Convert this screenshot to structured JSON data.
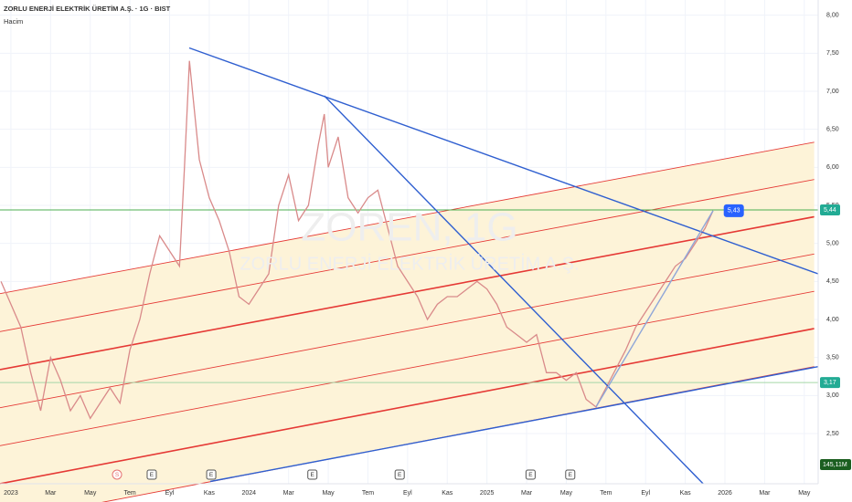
{
  "chart_data": {
    "type": "line",
    "title": "ZORLU ENERJİ ELEKTRİK ÜRETİM A.Ş. · 1G · BIST",
    "subtitle": "Hacim",
    "watermark": [
      "ZOREN, 1G",
      "ZORLU ENERJİ ELEKTRİK ÜRETİM A.Ş."
    ],
    "color": "#d98a8a",
    "x": [
      -0.5,
      0.5,
      1,
      1.5,
      2,
      2.5,
      3,
      3.5,
      4,
      4.5,
      5,
      5.5,
      6,
      6.5,
      7,
      7.5,
      8,
      8.5,
      8.75,
      9,
      9.5,
      10,
      10.5,
      11,
      11.5,
      12,
      12.5,
      13,
      13.5,
      14,
      14.5,
      15,
      15.5,
      15.8,
      16,
      16.5,
      17,
      17.5,
      18,
      18.5,
      19,
      19.5,
      20,
      20.5,
      21,
      21.5,
      22,
      22.5,
      23,
      23.5,
      24,
      24.5,
      25,
      25.5,
      26,
      26.5,
      27,
      27.5,
      28,
      28.5,
      29,
      29.5,
      30,
      30.5,
      31,
      31.5,
      32,
      32.5,
      33,
      33.5,
      34,
      34.5,
      35,
      35.4
    ],
    "values": [
      4.5,
      3.9,
      3.3,
      2.8,
      3.5,
      3.2,
      2.8,
      3.0,
      2.7,
      2.9,
      3.1,
      2.9,
      3.6,
      4.0,
      4.6,
      5.1,
      4.9,
      4.7,
      6.0,
      7.4,
      6.1,
      5.6,
      5.3,
      4.9,
      4.3,
      4.2,
      4.4,
      4.6,
      5.5,
      5.9,
      5.3,
      5.5,
      6.3,
      6.7,
      6.0,
      6.4,
      5.6,
      5.4,
      5.6,
      5.7,
      5.2,
      4.7,
      4.5,
      4.3,
      4.0,
      4.2,
      4.3,
      4.3,
      4.4,
      4.5,
      4.4,
      4.2,
      3.9,
      3.8,
      3.7,
      3.8,
      3.3,
      3.3,
      3.2,
      3.3,
      2.95,
      2.85,
      3.1,
      3.35,
      3.6,
      3.9,
      4.1,
      4.3,
      4.5,
      4.7,
      4.8,
      5.0,
      5.2,
      5.43
    ],
    "xlim": [
      -0.55,
      40.7
    ],
    "ylim": [
      1.84,
      8.2
    ],
    "xticks": [
      {
        "value": 0,
        "label": "2023"
      },
      {
        "value": 2,
        "label": "Mar"
      },
      {
        "value": 4,
        "label": "May"
      },
      {
        "value": 6,
        "label": "Tem"
      },
      {
        "value": 8,
        "label": "Eyl"
      },
      {
        "value": 10,
        "label": "Kas"
      },
      {
        "value": 12,
        "label": "2024"
      },
      {
        "value": 14,
        "label": "Mar"
      },
      {
        "value": 16,
        "label": "May"
      },
      {
        "value": 18,
        "label": "Tem"
      },
      {
        "value": 20,
        "label": "Eyl"
      },
      {
        "value": 22,
        "label": "Kas"
      },
      {
        "value": 24,
        "label": "2025"
      },
      {
        "value": 26,
        "label": "Mar"
      },
      {
        "value": 28,
        "label": "May"
      },
      {
        "value": 30,
        "label": "Tem"
      },
      {
        "value": 32,
        "label": "Eyl"
      },
      {
        "value": 34,
        "label": "Kas"
      },
      {
        "value": 36,
        "label": "2026"
      },
      {
        "value": 38,
        "label": "Mar"
      },
      {
        "value": 40,
        "label": "May"
      }
    ],
    "yticks": [
      {
        "value": 2.5,
        "label": "2,50"
      },
      {
        "value": 3,
        "label": "3,00"
      },
      {
        "value": 3.5,
        "label": "3,50"
      },
      {
        "value": 4,
        "label": "4,00"
      },
      {
        "value": 4.5,
        "label": "4,50"
      },
      {
        "value": 5,
        "label": "5,00"
      },
      {
        "value": 5.5,
        "label": "5,50"
      },
      {
        "value": 6,
        "label": "6,00"
      },
      {
        "value": 6.5,
        "label": "6,50"
      },
      {
        "value": 7,
        "label": "7,00"
      },
      {
        "value": 7.5,
        "label": "7,50"
      },
      {
        "value": 8,
        "label": "8,00"
      }
    ],
    "grid": true,
    "trendlines": [
      {
        "color": "#2f5fd0",
        "points": [
          [
            8.99,
            7.57
          ],
          [
            40.7,
            4.6
          ]
        ]
      },
      {
        "color": "#2f5fd0",
        "points": [
          [
            15.8,
            6.94
          ],
          [
            34.9,
            1.84
          ]
        ]
      },
      {
        "color": "#2f5fd0",
        "points": [
          [
            10.05,
            1.87
          ],
          [
            40.7,
            3.38
          ]
        ]
      },
      {
        "color": "#8fa6d8",
        "points": [
          [
            29.5,
            2.85
          ],
          [
            35.4,
            5.43
          ]
        ]
      }
    ],
    "channel": {
      "color": "#e53935",
      "fill": "#fdf3d8",
      "x": [
        -0.55,
        40.5
      ],
      "lines": [
        [
          4.34,
          6.33
        ],
        [
          3.84,
          5.84
        ],
        [
          3.34,
          5.35
        ],
        [
          2.84,
          4.86
        ],
        [
          2.34,
          4.37
        ],
        [
          1.84,
          3.88
        ],
        [
          1.34,
          3.38
        ]
      ]
    },
    "price_labels": [
      {
        "value": 5.44,
        "label": "5,44",
        "color": "#22ab94",
        "line": "#4caf50"
      },
      {
        "value": 3.17,
        "label": "3,17",
        "color": "#22ab94",
        "line": "#a5d6a7"
      }
    ],
    "callout": {
      "x": 36.4,
      "value": 5.43,
      "label": "5,43",
      "color": "#2962ff"
    },
    "volume_label": "145,11M",
    "events": [
      {
        "x": 5.35,
        "label": "S"
      },
      {
        "x": 7.1,
        "label": "E"
      },
      {
        "x": 10.1,
        "label": "E"
      },
      {
        "x": 15.2,
        "label": "E"
      },
      {
        "x": 19.6,
        "label": "E"
      },
      {
        "x": 26.2,
        "label": "E"
      },
      {
        "x": 28.2,
        "label": "E"
      }
    ]
  }
}
